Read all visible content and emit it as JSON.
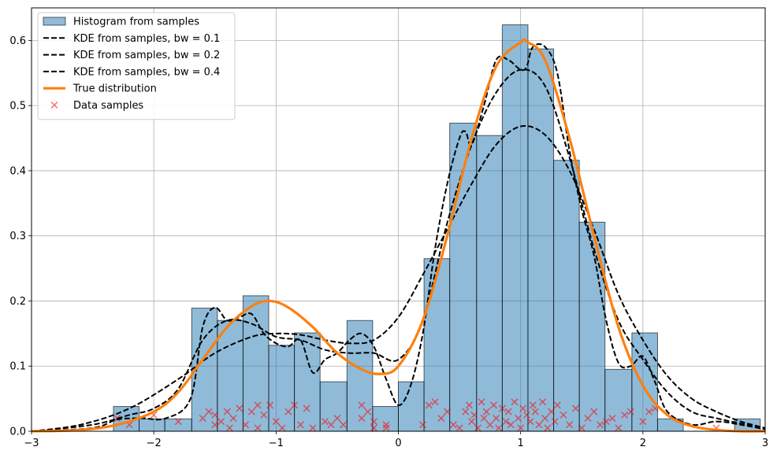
{
  "chart_data": {
    "type": "histogram-line-scatter",
    "title": "",
    "xlabel": "",
    "ylabel": "",
    "xlim": [
      -3,
      3
    ],
    "ylim": [
      0,
      0.65
    ],
    "grid": true,
    "legend_position": "top-left",
    "x_ticks": [
      -3,
      -2,
      -1,
      0,
      1,
      2,
      3
    ],
    "x_tick_labels": [
      "−3",
      "−2",
      "−1",
      "0",
      "1",
      "2",
      "3"
    ],
    "y_ticks": [
      0.0,
      0.1,
      0.2,
      0.3,
      0.4,
      0.5,
      0.6
    ],
    "y_tick_labels": [
      "0.0",
      "0.1",
      "0.2",
      "0.3",
      "0.4",
      "0.5",
      "0.6"
    ],
    "histogram": {
      "name": "Histogram from samples",
      "color": "#1f77b4",
      "bin_edges": [
        -2.33,
        -2.12,
        -1.91,
        -1.69,
        -1.48,
        -1.27,
        -1.06,
        -0.85,
        -0.64,
        -0.42,
        -0.21,
        0.0,
        0.21,
        0.42,
        0.64,
        0.85,
        1.06,
        1.27,
        1.48,
        1.69,
        1.91,
        2.12,
        2.33,
        2.54,
        2.75,
        2.96
      ],
      "densities": [
        0.038,
        0.019,
        0.019,
        0.189,
        0.17,
        0.208,
        0.132,
        0.151,
        0.076,
        0.17,
        0.038,
        0.076,
        0.265,
        0.473,
        0.454,
        0.624,
        0.587,
        0.416,
        0.321,
        0.095,
        0.151,
        0.019,
        0.0,
        0.0,
        0.019
      ]
    },
    "series": [
      {
        "name": "KDE from samples, bw = 0.1",
        "style": "dashed",
        "color": "#000000",
        "x": [
          -3,
          -2.5,
          -2.3,
          -2.1,
          -1.9,
          -1.7,
          -1.6,
          -1.5,
          -1.4,
          -1.3,
          -1.2,
          -1.1,
          -1.0,
          -0.9,
          -0.8,
          -0.7,
          -0.6,
          -0.5,
          -0.4,
          -0.3,
          -0.2,
          -0.1,
          0.0,
          0.1,
          0.2,
          0.3,
          0.4,
          0.5,
          0.55,
          0.6,
          0.7,
          0.8,
          0.9,
          1.0,
          1.05,
          1.1,
          1.2,
          1.3,
          1.4,
          1.5,
          1.6,
          1.7,
          1.8,
          1.9,
          2.0,
          2.1,
          2.2,
          2.4,
          2.6,
          2.8,
          3.0
        ],
        "y": [
          0.0,
          0.005,
          0.018,
          0.02,
          0.02,
          0.05,
          0.16,
          0.19,
          0.17,
          0.175,
          0.18,
          0.15,
          0.135,
          0.13,
          0.14,
          0.09,
          0.11,
          0.12,
          0.14,
          0.15,
          0.13,
          0.08,
          0.04,
          0.07,
          0.15,
          0.28,
          0.38,
          0.45,
          0.46,
          0.44,
          0.5,
          0.57,
          0.57,
          0.555,
          0.56,
          0.59,
          0.59,
          0.55,
          0.43,
          0.34,
          0.27,
          0.17,
          0.105,
          0.1,
          0.115,
          0.075,
          0.03,
          0.01,
          0.015,
          0.01,
          0.003
        ]
      },
      {
        "name": "KDE from samples, bw = 0.2",
        "style": "dashed",
        "color": "#000000",
        "x": [
          -3,
          -2.5,
          -2.2,
          -2.0,
          -1.8,
          -1.6,
          -1.4,
          -1.2,
          -1.0,
          -0.8,
          -0.6,
          -0.4,
          -0.2,
          0.0,
          0.2,
          0.4,
          0.6,
          0.8,
          1.0,
          1.2,
          1.4,
          1.6,
          1.8,
          2.0,
          2.2,
          2.4,
          2.6,
          2.8,
          3.0
        ],
        "y": [
          0.0,
          0.01,
          0.025,
          0.035,
          0.065,
          0.14,
          0.17,
          0.165,
          0.145,
          0.14,
          0.125,
          0.12,
          0.12,
          0.11,
          0.17,
          0.32,
          0.44,
          0.52,
          0.555,
          0.53,
          0.42,
          0.28,
          0.17,
          0.11,
          0.06,
          0.03,
          0.02,
          0.012,
          0.005
        ]
      },
      {
        "name": "KDE from samples, bw = 0.4",
        "style": "dashed",
        "color": "#000000",
        "x": [
          -3,
          -2.6,
          -2.2,
          -1.8,
          -1.5,
          -1.2,
          -1.0,
          -0.8,
          -0.6,
          -0.4,
          -0.2,
          0.0,
          0.2,
          0.4,
          0.6,
          0.8,
          1.0,
          1.2,
          1.4,
          1.6,
          1.8,
          2.0,
          2.2,
          2.4,
          2.6,
          2.8,
          3.0
        ],
        "y": [
          0.0,
          0.01,
          0.035,
          0.08,
          0.12,
          0.145,
          0.15,
          0.148,
          0.14,
          0.135,
          0.14,
          0.175,
          0.24,
          0.31,
          0.38,
          0.44,
          0.468,
          0.455,
          0.4,
          0.31,
          0.21,
          0.14,
          0.085,
          0.05,
          0.03,
          0.015,
          0.005
        ]
      },
      {
        "name": "True distribution",
        "style": "solid",
        "color": "#ff7f0e",
        "x": [
          -3,
          -2.6,
          -2.3,
          -2.0,
          -1.8,
          -1.6,
          -1.4,
          -1.2,
          -1.05,
          -0.9,
          -0.7,
          -0.5,
          -0.3,
          -0.15,
          0.0,
          0.2,
          0.4,
          0.6,
          0.8,
          1.0,
          1.05,
          1.2,
          1.4,
          1.6,
          1.8,
          2.0,
          2.2,
          2.4,
          2.6,
          2.8,
          3.0
        ],
        "y": [
          0.0,
          0.002,
          0.01,
          0.03,
          0.06,
          0.11,
          0.16,
          0.192,
          0.2,
          0.19,
          0.16,
          0.12,
          0.095,
          0.088,
          0.1,
          0.17,
          0.3,
          0.45,
          0.56,
          0.597,
          0.598,
          0.57,
          0.45,
          0.3,
          0.16,
          0.07,
          0.025,
          0.008,
          0.002,
          0.0,
          0.0
        ]
      }
    ],
    "scatter": {
      "name": "Data samples",
      "color": "#ff0000",
      "marker": "x",
      "x": [
        -2.3,
        -2.2,
        -2.0,
        -1.8,
        -1.6,
        -1.55,
        -1.5,
        -1.5,
        -1.45,
        -1.4,
        -1.38,
        -1.35,
        -1.3,
        -1.25,
        -1.2,
        -1.15,
        -1.15,
        -1.1,
        -1.05,
        -1.0,
        -0.95,
        -0.9,
        -0.85,
        -0.8,
        -0.75,
        -0.7,
        -0.6,
        -0.55,
        -0.5,
        -0.45,
        -0.3,
        -0.3,
        -0.25,
        -0.2,
        -0.2,
        -0.1,
        -0.1,
        0.2,
        0.25,
        0.3,
        0.35,
        0.4,
        0.45,
        0.5,
        0.55,
        0.58,
        0.6,
        0.62,
        0.65,
        0.68,
        0.7,
        0.72,
        0.75,
        0.78,
        0.8,
        0.82,
        0.85,
        0.88,
        0.9,
        0.92,
        0.95,
        0.98,
        1.0,
        1.02,
        1.05,
        1.08,
        1.1,
        1.12,
        1.15,
        1.18,
        1.2,
        1.22,
        1.25,
        1.28,
        1.3,
        1.35,
        1.4,
        1.45,
        1.5,
        1.55,
        1.6,
        1.65,
        1.7,
        1.75,
        1.8,
        1.85,
        1.9,
        2.0,
        2.05,
        2.1,
        2.6
      ],
      "y": [
        0.02,
        0.01,
        0.025,
        0.015,
        0.02,
        0.03,
        0.01,
        0.025,
        0.015,
        0.03,
        0.005,
        0.02,
        0.035,
        0.01,
        0.03,
        0.04,
        0.005,
        0.025,
        0.04,
        0.015,
        0.005,
        0.03,
        0.04,
        0.01,
        0.035,
        0.005,
        0.015,
        0.01,
        0.02,
        0.01,
        0.04,
        0.02,
        0.03,
        0.005,
        0.015,
        0.01,
        0.005,
        0.01,
        0.04,
        0.045,
        0.02,
        0.03,
        0.01,
        0.005,
        0.03,
        0.04,
        0.015,
        0.025,
        0.005,
        0.045,
        0.02,
        0.03,
        0.01,
        0.04,
        0.02,
        0.005,
        0.035,
        0.015,
        0.03,
        0.01,
        0.045,
        0.02,
        0.005,
        0.035,
        0.025,
        0.015,
        0.04,
        0.03,
        0.01,
        0.045,
        0.02,
        0.005,
        0.03,
        0.015,
        0.04,
        0.025,
        0.01,
        0.035,
        0.005,
        0.02,
        0.03,
        0.01,
        0.015,
        0.02,
        0.005,
        0.025,
        0.03,
        0.015,
        0.03,
        0.035,
        0.005
      ]
    },
    "legend": [
      {
        "label": "Histogram from samples",
        "kind": "patch"
      },
      {
        "label": "KDE from samples, bw = 0.1",
        "kind": "dashed"
      },
      {
        "label": "KDE from samples, bw = 0.2",
        "kind": "dashed"
      },
      {
        "label": "KDE from samples, bw = 0.4",
        "kind": "dashed"
      },
      {
        "label": "True distribution",
        "kind": "orange-line"
      },
      {
        "label": "Data samples",
        "kind": "x-marker"
      }
    ]
  }
}
